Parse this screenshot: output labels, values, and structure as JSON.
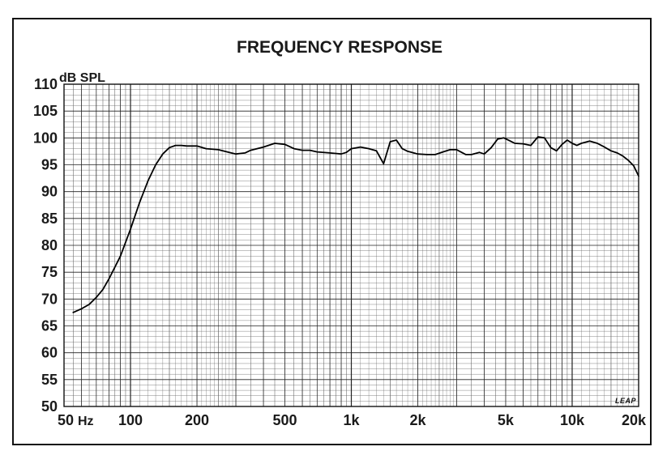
{
  "chart_data": {
    "type": "line",
    "title": "FREQUENCY RESPONSE",
    "ylabel": "dB SPL",
    "xlabel": "",
    "x_scale": "log",
    "xlim": [
      50,
      20000
    ],
    "ylim": [
      50,
      110
    ],
    "grid": true,
    "x_ticks": [
      {
        "value": 50,
        "label": "50"
      },
      {
        "value": 100,
        "label": "100"
      },
      {
        "value": 200,
        "label": "200"
      },
      {
        "value": 500,
        "label": "500"
      },
      {
        "value": 1000,
        "label": "1k"
      },
      {
        "value": 2000,
        "label": "2k"
      },
      {
        "value": 5000,
        "label": "5k"
      },
      {
        "value": 10000,
        "label": "10k"
      },
      {
        "value": 20000,
        "label": "20k"
      }
    ],
    "x_unit_label": "Hz",
    "y_ticks": [
      50,
      55,
      60,
      65,
      70,
      75,
      80,
      85,
      90,
      95,
      100,
      105,
      110
    ],
    "logo": "LEAP",
    "series": [
      {
        "color": "#000000",
        "x": [
          55,
          60,
          65,
          70,
          75,
          80,
          90,
          100,
          110,
          120,
          130,
          140,
          150,
          160,
          170,
          180,
          200,
          220,
          250,
          280,
          300,
          330,
          350,
          400,
          450,
          500,
          550,
          600,
          650,
          700,
          800,
          900,
          950,
          1000,
          1100,
          1200,
          1300,
          1400,
          1500,
          1600,
          1700,
          1800,
          2000,
          2200,
          2400,
          2600,
          2800,
          3000,
          3300,
          3500,
          3800,
          4000,
          4300,
          4600,
          4900,
          5200,
          5500,
          6000,
          6500,
          7000,
          7500,
          8000,
          8500,
          9000,
          9500,
          10000,
          10500,
          11000,
          12000,
          13000,
          14000,
          15000,
          16000,
          17000,
          18000,
          19000,
          20000
        ],
        "y": [
          67.5,
          68.2,
          69.0,
          70.3,
          71.8,
          73.8,
          78.0,
          83.0,
          88.0,
          92.0,
          95.0,
          97.0,
          98.2,
          98.6,
          98.6,
          98.5,
          98.5,
          98.0,
          97.8,
          97.3,
          97.0,
          97.2,
          97.7,
          98.3,
          99.0,
          98.8,
          98.0,
          97.7,
          97.7,
          97.4,
          97.2,
          97.0,
          97.3,
          98.0,
          98.3,
          98.0,
          97.6,
          95.2,
          99.3,
          99.6,
          98.0,
          97.5,
          97.0,
          96.9,
          96.9,
          97.4,
          97.8,
          97.8,
          96.9,
          96.9,
          97.3,
          97.0,
          98.2,
          99.8,
          100.0,
          99.5,
          99.0,
          98.9,
          98.6,
          100.2,
          100.0,
          98.2,
          97.6,
          98.8,
          99.6,
          99.0,
          98.6,
          99.0,
          99.4,
          99.0,
          98.3,
          97.6,
          97.2,
          96.6,
          95.8,
          94.8,
          92.9
        ]
      }
    ]
  }
}
